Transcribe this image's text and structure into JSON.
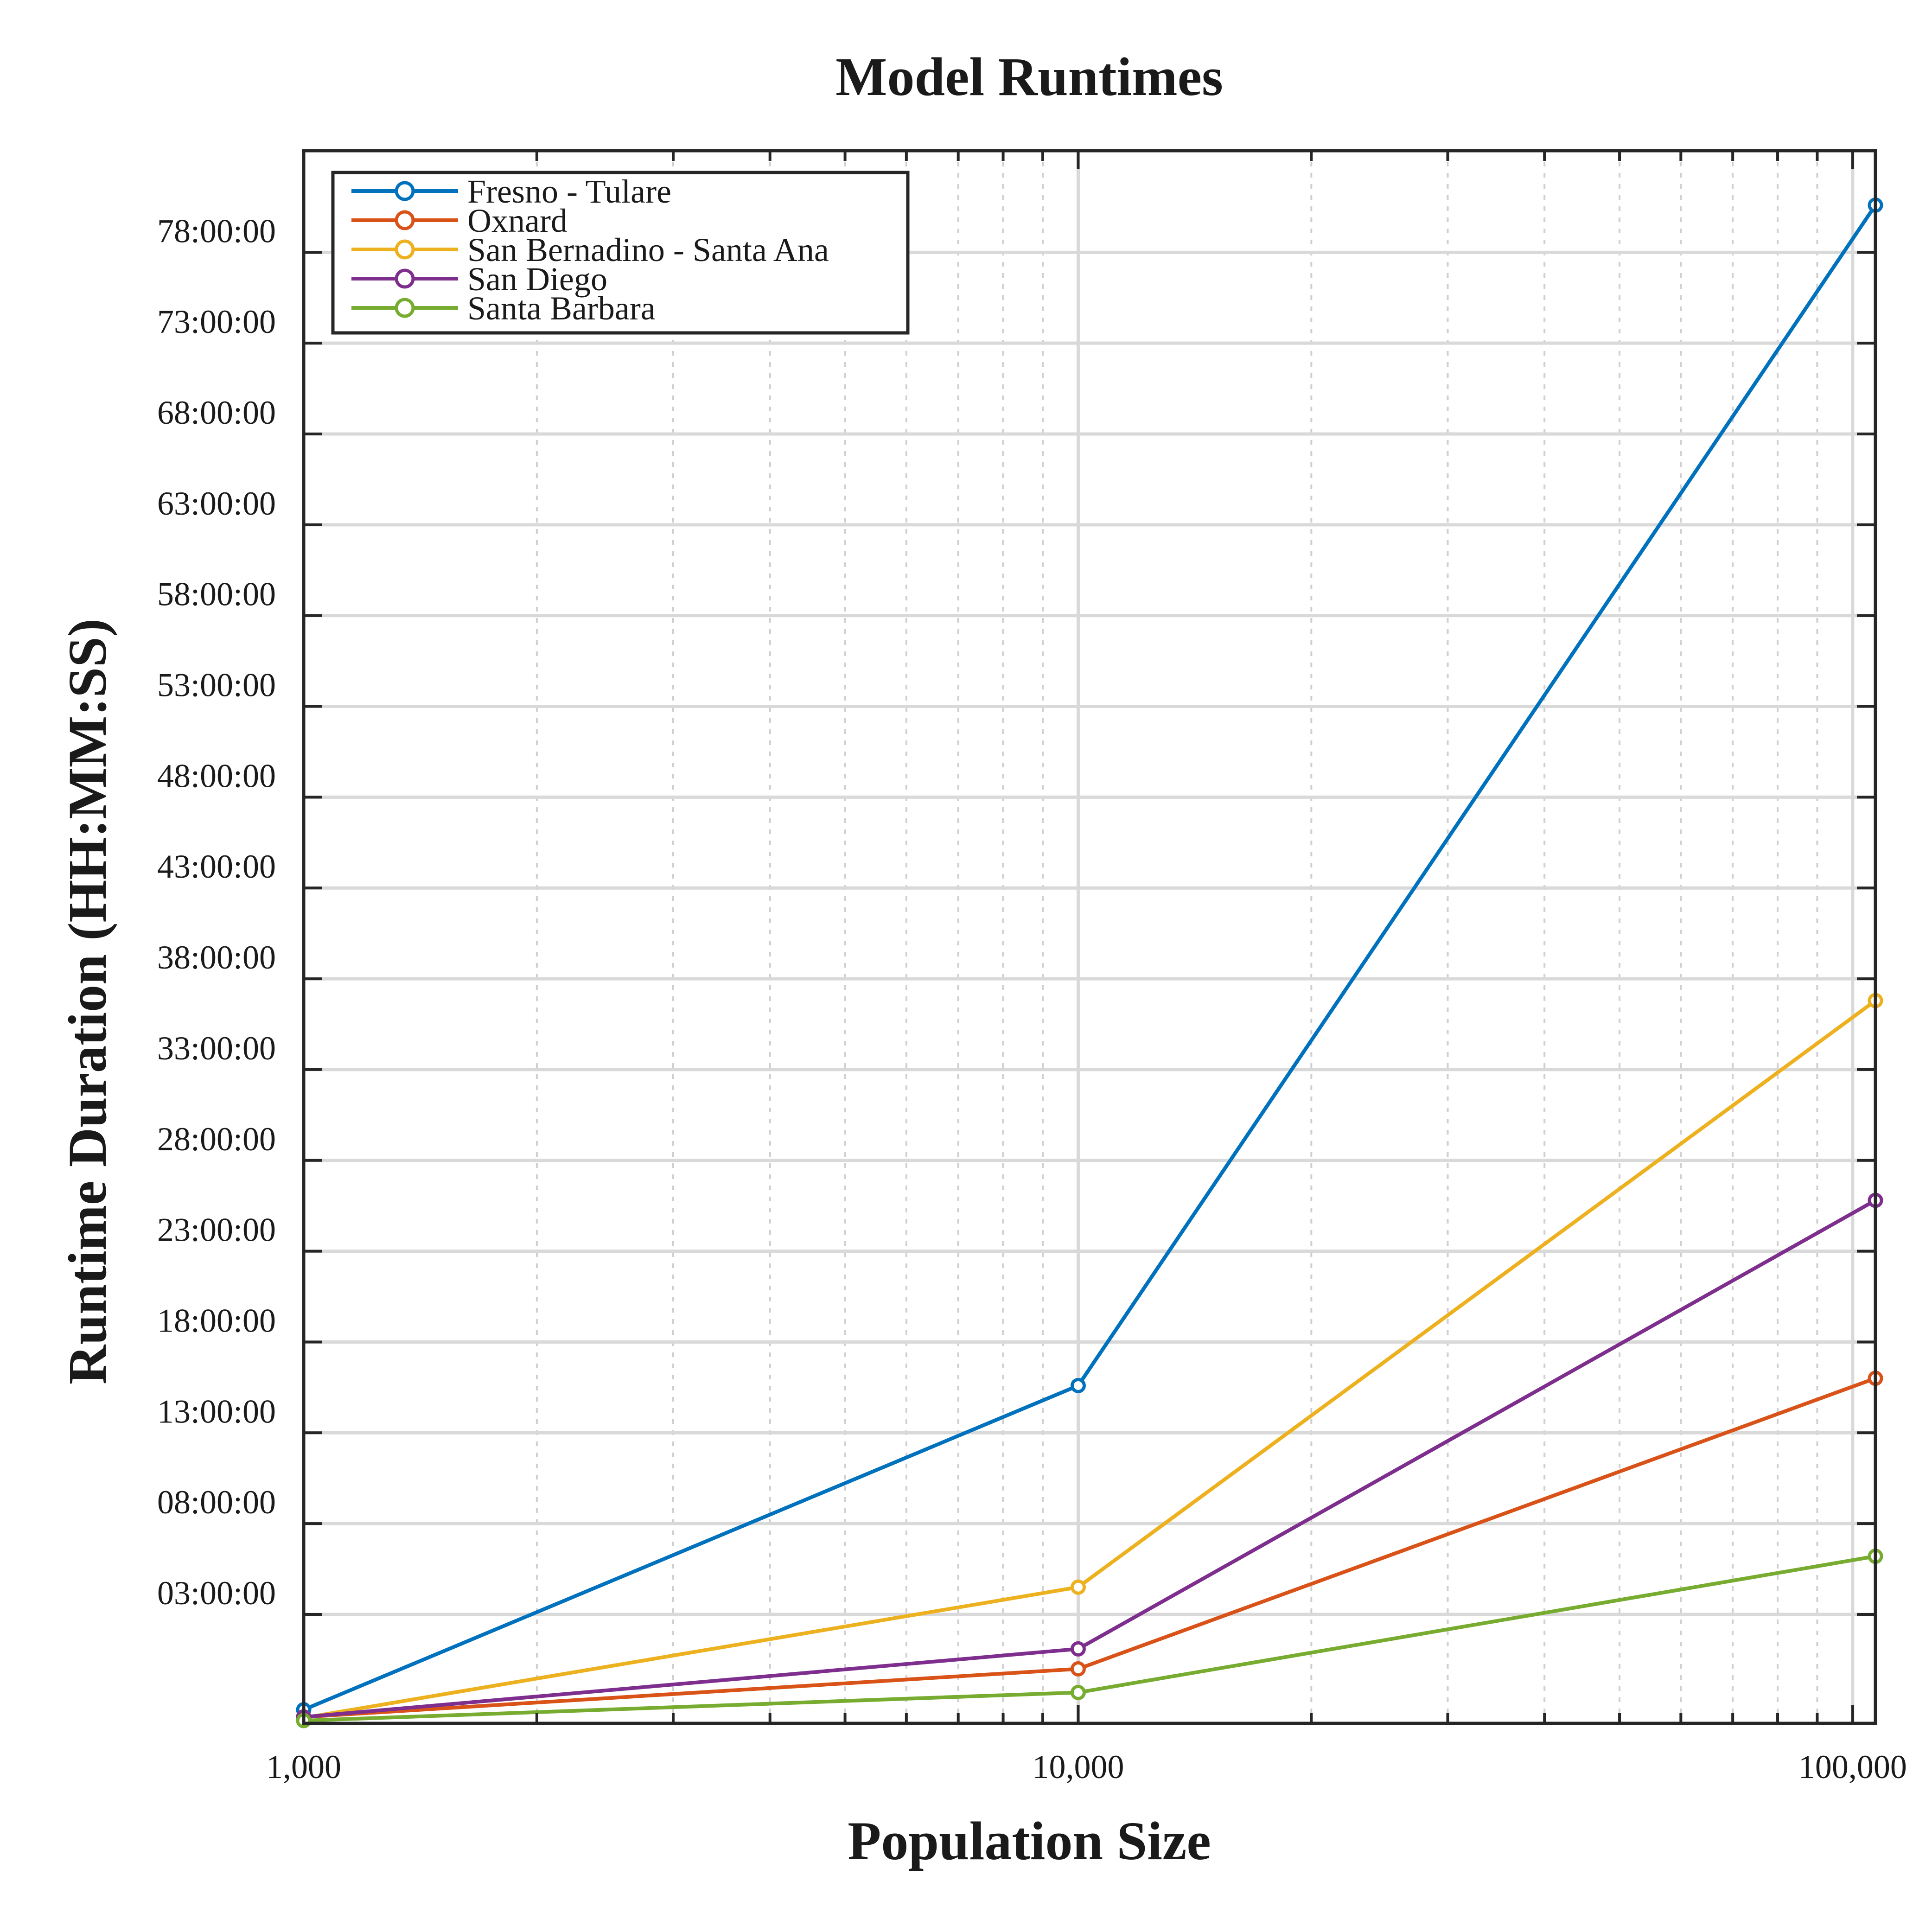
{
  "chart_data": {
    "type": "line",
    "title": "Model Runtimes",
    "xlabel": "Population Size",
    "ylabel": "Runtime Duration (HH:MM:SS)",
    "x_scale": "log",
    "xlim": [
      1000,
      107000
    ],
    "ylim_hours": [
      -3,
      83.6
    ],
    "x_ticks": [
      1000,
      10000,
      100000
    ],
    "x_tick_labels": [
      "1,000",
      "10,000",
      "100,000"
    ],
    "y_ticks_hours": [
      3,
      8,
      13,
      18,
      23,
      28,
      33,
      38,
      43,
      48,
      53,
      58,
      63,
      68,
      73,
      78
    ],
    "y_tick_labels": [
      "03:00:00",
      "08:00:00",
      "13:00:00",
      "18:00:00",
      "23:00:00",
      "28:00:00",
      "33:00:00",
      "38:00:00",
      "43:00:00",
      "48:00:00",
      "53:00:00",
      "58:00:00",
      "63:00:00",
      "68:00:00",
      "73:00:00",
      "78:00:00"
    ],
    "grid": true,
    "legend_position": "top-left",
    "x": [
      1000,
      10000,
      107000
    ],
    "series": [
      {
        "name": "Fresno - Tulare",
        "color": "#0072BD",
        "values": [
          -2.25,
          15.6,
          80.6
        ]
      },
      {
        "name": "Oxnard",
        "color": "#D95319",
        "values": [
          -2.65,
          0.0,
          16.0
        ]
      },
      {
        "name": "San Bernadino - Santa Ana",
        "color": "#EDB120",
        "values": [
          -2.7,
          4.5,
          36.8
        ]
      },
      {
        "name": "San Diego",
        "color": "#7E2F8E",
        "values": [
          -2.65,
          1.1,
          25.8
        ]
      },
      {
        "name": "Santa Barbara",
        "color": "#77AC30",
        "values": [
          -2.85,
          -1.3,
          6.2
        ]
      }
    ]
  }
}
